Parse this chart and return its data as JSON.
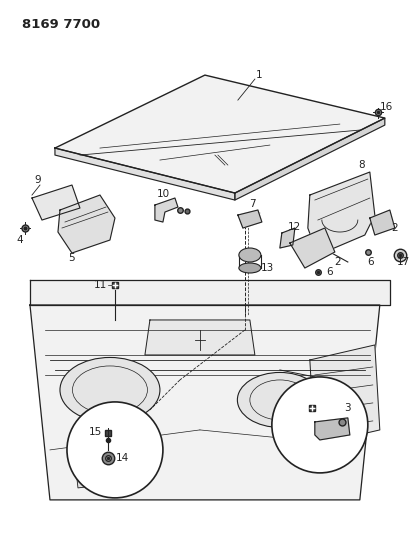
{
  "title": "8169 7700",
  "bg_color": "#ffffff",
  "lc": "#222222",
  "title_fontsize": 9.5,
  "label_fontsize": 7.5,
  "fig_width": 4.11,
  "fig_height": 5.33,
  "dpi": 100
}
